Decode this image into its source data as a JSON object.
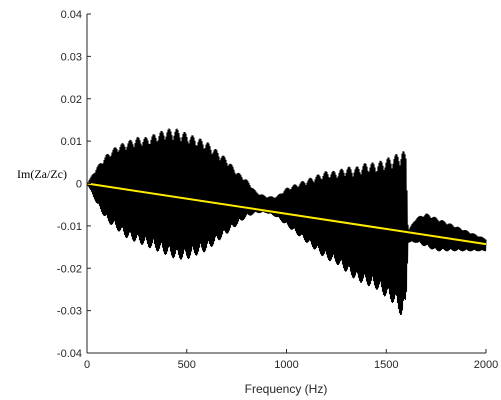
{
  "chart_data": {
    "type": "line",
    "title": "",
    "xlabel": "Frequency (Hz)",
    "ylabel": "Im(Za/Zc)",
    "xlim": [
      0,
      2000
    ],
    "ylim": [
      -0.04,
      0.04
    ],
    "xticks": [
      0,
      500,
      1000,
      1500,
      2000
    ],
    "xtick_labels": [
      "0",
      "500",
      "1000",
      "1500",
      "2000"
    ],
    "yticks": [
      -0.04,
      -0.03,
      -0.02,
      -0.01,
      0,
      0.01,
      0.02,
      0.03,
      0.04
    ],
    "ytick_labels": [
      "-0.04",
      "-0.03",
      "-0.02",
      "-0.01",
      "0",
      "0.01",
      "0.02",
      "0.03",
      "0.04"
    ],
    "grid": false,
    "legend": "none",
    "series": [
      {
        "color": "#000000",
        "style": "dense oscillation (envelope)",
        "x": [
          0,
          50,
          100,
          150,
          200,
          250,
          300,
          350,
          400,
          450,
          500,
          550,
          600,
          650,
          700,
          750,
          800,
          850,
          900,
          950,
          1000,
          1050,
          1100,
          1150,
          1200,
          1250,
          1300,
          1350,
          1400,
          1450,
          1500,
          1550,
          1580,
          1600,
          1610,
          1650,
          1700,
          1750,
          1800,
          1850,
          1900,
          1950,
          2000
        ],
        "upper": [
          0.0,
          0.004,
          0.007,
          0.009,
          0.01,
          0.011,
          0.011,
          0.012,
          0.013,
          0.013,
          0.012,
          0.011,
          0.01,
          0.008,
          0.006,
          0.003,
          0.001,
          -0.002,
          -0.003,
          -0.003,
          -0.001,
          0.0,
          0.001,
          0.002,
          0.003,
          0.003,
          0.004,
          0.004,
          0.005,
          0.005,
          0.006,
          0.007,
          0.008,
          0.007,
          -0.011,
          -0.008,
          -0.007,
          -0.008,
          -0.009,
          -0.01,
          -0.011,
          -0.012,
          -0.013
        ],
        "lower": [
          0.0,
          -0.005,
          -0.009,
          -0.011,
          -0.013,
          -0.014,
          -0.015,
          -0.016,
          -0.017,
          -0.018,
          -0.018,
          -0.017,
          -0.016,
          -0.014,
          -0.012,
          -0.01,
          -0.008,
          -0.007,
          -0.007,
          -0.008,
          -0.01,
          -0.012,
          -0.014,
          -0.016,
          -0.018,
          -0.019,
          -0.021,
          -0.023,
          -0.024,
          -0.025,
          -0.027,
          -0.029,
          -0.032,
          -0.028,
          -0.014,
          -0.014,
          -0.015,
          -0.016,
          -0.016,
          -0.016,
          -0.016,
          -0.016,
          -0.016
        ]
      },
      {
        "color": "#ffeb00",
        "style": "line",
        "x": [
          0,
          2000
        ],
        "y": [
          0.0,
          -0.0143
        ]
      }
    ]
  }
}
